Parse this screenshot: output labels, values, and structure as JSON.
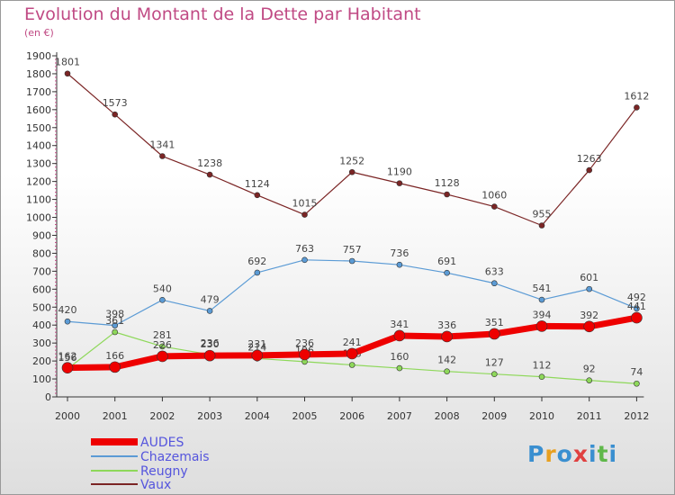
{
  "chart_data": {
    "type": "line",
    "title": "Evolution du Montant de la Dette par Habitant",
    "subtitle": "(en €)",
    "categories": [
      "2000",
      "2001",
      "2002",
      "2003",
      "2004",
      "2005",
      "2006",
      "2007",
      "2008",
      "2009",
      "2010",
      "2011",
      "2012"
    ],
    "ylim": [
      0,
      1900
    ],
    "yticks": [
      0,
      100,
      200,
      300,
      400,
      500,
      600,
      700,
      800,
      900,
      1000,
      1100,
      1200,
      1300,
      1400,
      1500,
      1600,
      1700,
      1800,
      1900
    ],
    "grid": false,
    "legend_position": "bottom-left",
    "series": [
      {
        "name": "Vaux",
        "color": "#7b2525",
        "values": [
          1801,
          1573,
          1341,
          1238,
          1124,
          1015,
          1252,
          1190,
          1128,
          1060,
          955,
          1263,
          1612
        ]
      },
      {
        "name": "Chazemais",
        "color": "#5b9bd5",
        "values": [
          420,
          398,
          540,
          479,
          692,
          763,
          757,
          736,
          691,
          633,
          541,
          601,
          492
        ]
      },
      {
        "name": "Reugny",
        "color": "#8ed85a",
        "values": [
          156,
          361,
          281,
          236,
          214,
          196,
          178,
          160,
          142,
          127,
          112,
          92,
          74
        ]
      },
      {
        "name": "AUDES",
        "color": "#ee0000",
        "values": [
          162,
          166,
          226,
          230,
          231,
          236,
          241,
          341,
          336,
          351,
          394,
          392,
          441
        ]
      }
    ],
    "legend_order": [
      "AUDES",
      "Chazemais",
      "Reugny",
      "Vaux"
    ]
  },
  "logo": {
    "text": "Proxiti",
    "colors": [
      "#3a8fd0",
      "#e8a020",
      "#3a8fd0",
      "#e04040",
      "#3a8fd0",
      "#5fb84a",
      "#3a8fd0"
    ]
  }
}
